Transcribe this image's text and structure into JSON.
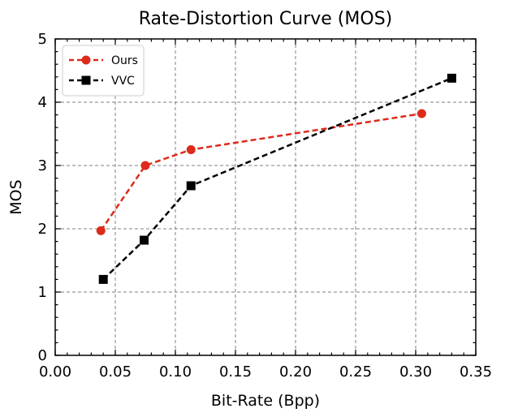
{
  "chart_data": {
    "type": "line",
    "title": "Rate-Distortion Curve (MOS)",
    "xlabel": "Bit-Rate (Bpp)",
    "ylabel": "MOS",
    "xlim": [
      0.0,
      0.35
    ],
    "ylim": [
      0,
      5
    ],
    "xticks": [
      "0.00",
      "0.05",
      "0.10",
      "0.15",
      "0.20",
      "0.25",
      "0.30",
      "0.35"
    ],
    "yticks": [
      "0",
      "1",
      "2",
      "3",
      "4",
      "5"
    ],
    "grid": true,
    "legend": "top-left",
    "series": [
      {
        "name": "Ours",
        "color": "#dd2a1a",
        "marker": "circle",
        "x": [
          0.038,
          0.075,
          0.113,
          0.305
        ],
        "y": [
          1.97,
          3.0,
          3.25,
          3.82
        ]
      },
      {
        "name": "VVC",
        "color": "#000000",
        "marker": "square",
        "x": [
          0.04,
          0.074,
          0.113,
          0.33
        ],
        "y": [
          1.2,
          1.82,
          2.68,
          4.38
        ]
      }
    ]
  }
}
